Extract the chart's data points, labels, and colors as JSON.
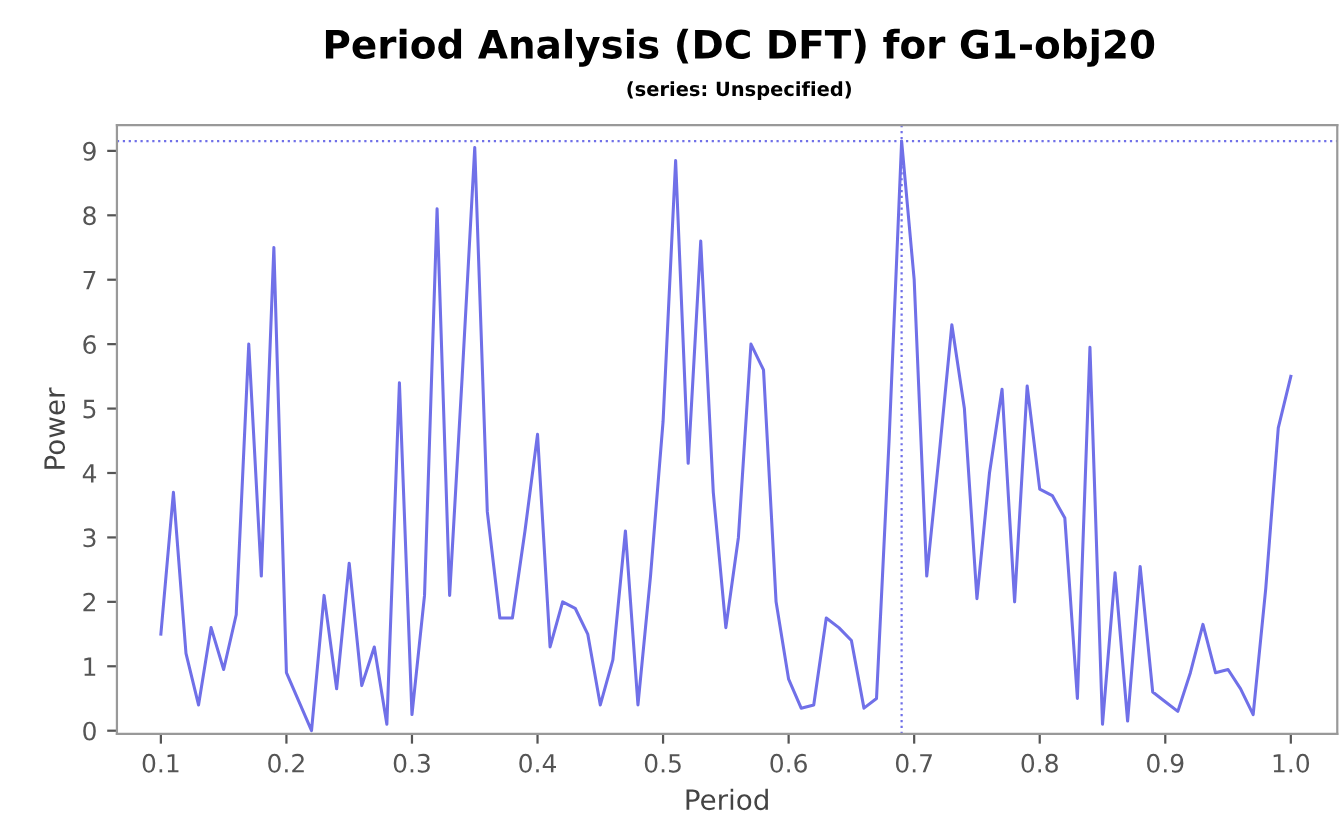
{
  "chart_data": {
    "type": "line",
    "title": "Period Analysis (DC DFT) for G1-obj20",
    "subtitle": "(series: Unspecified)",
    "xlabel": "Period",
    "ylabel": "Power",
    "x": [
      0.1,
      0.11,
      0.12,
      0.13,
      0.14,
      0.15,
      0.16,
      0.17,
      0.18,
      0.19,
      0.2,
      0.21,
      0.22,
      0.23,
      0.24,
      0.25,
      0.26,
      0.27,
      0.28,
      0.29,
      0.3,
      0.31,
      0.32,
      0.33,
      0.34,
      0.35,
      0.36,
      0.37,
      0.38,
      0.39,
      0.4,
      0.41,
      0.42,
      0.43,
      0.44,
      0.45,
      0.46,
      0.47,
      0.48,
      0.49,
      0.5,
      0.51,
      0.52,
      0.53,
      0.54,
      0.55,
      0.56,
      0.57,
      0.58,
      0.59,
      0.6,
      0.61,
      0.62,
      0.63,
      0.64,
      0.65,
      0.66,
      0.67,
      0.68,
      0.69,
      0.7,
      0.71,
      0.72,
      0.73,
      0.74,
      0.75,
      0.76,
      0.77,
      0.78,
      0.79,
      0.8,
      0.81,
      0.82,
      0.83,
      0.84,
      0.85,
      0.86,
      0.87,
      0.88,
      0.89,
      0.9,
      0.91,
      0.92,
      0.93,
      0.94,
      0.95,
      0.96,
      0.97,
      0.98,
      0.99,
      1.0
    ],
    "series": [
      {
        "color": "#7070e8",
        "values": [
          1.5,
          3.7,
          1.2,
          0.4,
          1.6,
          0.95,
          1.8,
          6.0,
          2.4,
          7.5,
          0.9,
          0.45,
          0.0,
          2.1,
          0.65,
          2.6,
          0.7,
          1.3,
          0.1,
          5.4,
          0.25,
          2.1,
          8.1,
          2.1,
          5.5,
          9.05,
          3.4,
          1.75,
          1.75,
          3.1,
          4.6,
          1.3,
          2.0,
          1.9,
          1.5,
          0.4,
          1.1,
          3.1,
          0.4,
          2.4,
          4.8,
          8.85,
          4.15,
          7.6,
          3.7,
          1.6,
          3.0,
          6.0,
          5.6,
          2.0,
          0.8,
          0.35,
          0.4,
          1.75,
          1.6,
          1.4,
          0.35,
          0.5,
          4.5,
          9.15,
          7.0,
          2.4,
          4.3,
          6.3,
          5.0,
          2.05,
          4.0,
          5.3,
          2.0,
          5.35,
          3.75,
          3.65,
          3.3,
          0.5,
          5.95,
          0.1,
          2.45,
          0.15,
          2.55,
          0.6,
          0.45,
          0.3,
          0.9,
          1.65,
          0.9,
          0.95,
          0.65,
          0.25,
          2.2,
          4.7,
          5.5
        ]
      }
    ],
    "xlim": [
      0.065,
      1.037
    ],
    "ylim": [
      -0.05,
      9.4
    ],
    "xticks": [
      {
        "value": 0.1,
        "label": "0.1"
      },
      {
        "value": 0.2,
        "label": "0.2"
      },
      {
        "value": 0.3,
        "label": "0.3"
      },
      {
        "value": 0.4,
        "label": "0.4"
      },
      {
        "value": 0.5,
        "label": "0.5"
      },
      {
        "value": 0.6,
        "label": "0.6"
      },
      {
        "value": 0.7,
        "label": "0.7"
      },
      {
        "value": 0.8,
        "label": "0.8"
      },
      {
        "value": 0.9,
        "label": "0.9"
      },
      {
        "value": 1.0,
        "label": "1.0"
      }
    ],
    "yticks": [
      0,
      1,
      2,
      3,
      4,
      5,
      6,
      7,
      8,
      9
    ],
    "ref_lines": [
      {
        "axis": "y",
        "value": 9.15,
        "color": "#7070e8",
        "line_style": "dotted"
      },
      {
        "axis": "x",
        "value": 0.69,
        "color": "#7070e8",
        "line_style": "dotted"
      }
    ],
    "grid": false,
    "legend": false,
    "marker": "none",
    "line_style": "solid"
  }
}
